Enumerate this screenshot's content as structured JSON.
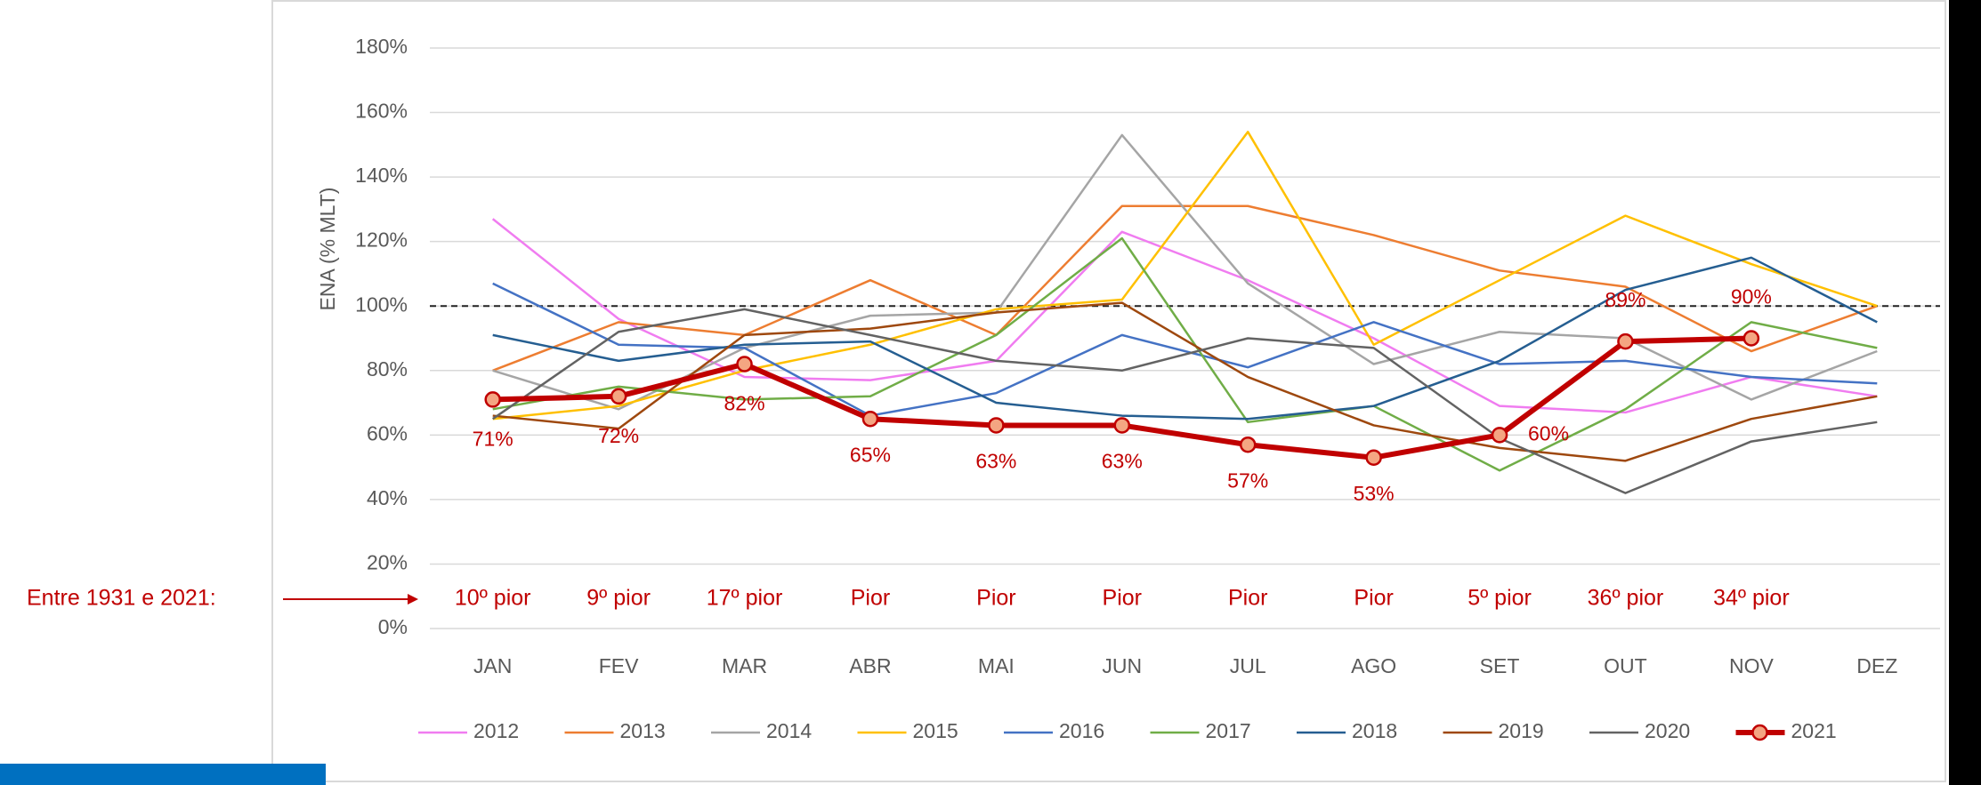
{
  "chart_data": {
    "type": "line",
    "y_axis_label": "ENA (% MLT)",
    "categories": [
      "JAN",
      "FEV",
      "MAR",
      "ABR",
      "MAI",
      "JUN",
      "JUL",
      "AGO",
      "SET",
      "OUT",
      "NOV",
      "DEZ"
    ],
    "ylim": [
      0,
      180
    ],
    "yticks": [
      {
        "value": 0,
        "label": "0%"
      },
      {
        "value": 20,
        "label": "20%"
      },
      {
        "value": 40,
        "label": "40%"
      },
      {
        "value": 60,
        "label": "60%"
      },
      {
        "value": 80,
        "label": "80%"
      },
      {
        "value": 100,
        "label": "100%"
      },
      {
        "value": 120,
        "label": "120%"
      },
      {
        "value": 140,
        "label": "140%"
      },
      {
        "value": 160,
        "label": "160%"
      },
      {
        "value": 180,
        "label": "180%"
      }
    ],
    "grid": true,
    "reference_line": 100,
    "legend": "bottom",
    "series": [
      {
        "name": "2012",
        "color": "#f07cf0",
        "values": [
          127,
          96,
          78,
          77,
          83,
          123,
          108,
          90,
          69,
          67,
          78,
          72
        ]
      },
      {
        "name": "2013",
        "color": "#ed7d31",
        "values": [
          80,
          95,
          91,
          108,
          91,
          131,
          131,
          122,
          111,
          106,
          86,
          100
        ]
      },
      {
        "name": "2014",
        "color": "#a5a5a5",
        "values": [
          80,
          68,
          87,
          97,
          98,
          153,
          107,
          82,
          92,
          90,
          71,
          86
        ]
      },
      {
        "name": "2015",
        "color": "#ffc000",
        "values": [
          65,
          69,
          80,
          88,
          99,
          102,
          154,
          88,
          108,
          128,
          113,
          100
        ]
      },
      {
        "name": "2016",
        "color": "#4472c4",
        "values": [
          107,
          88,
          87,
          66,
          73,
          91,
          81,
          95,
          82,
          83,
          78,
          76
        ]
      },
      {
        "name": "2017",
        "color": "#70ad47",
        "values": [
          68,
          75,
          71,
          72,
          91,
          121,
          64,
          69,
          49,
          68,
          95,
          87
        ]
      },
      {
        "name": "2018",
        "color": "#255e91",
        "values": [
          91,
          83,
          88,
          89,
          70,
          66,
          65,
          69,
          83,
          105,
          115,
          95
        ]
      },
      {
        "name": "2019",
        "color": "#9e480e",
        "values": [
          66,
          62,
          91,
          93,
          98,
          101,
          78,
          63,
          56,
          52,
          65,
          72
        ]
      },
      {
        "name": "2020",
        "color": "#636363",
        "values": [
          65,
          92,
          99,
          91,
          83,
          80,
          90,
          87,
          59,
          42,
          58,
          64
        ]
      },
      {
        "name": "2021",
        "color": "#c00000",
        "marker_color": "#f4a582",
        "values": [
          71,
          72,
          82,
          65,
          63,
          63,
          57,
          53,
          60,
          89,
          90,
          null
        ],
        "value_labels": [
          "71%",
          "72%",
          "82%",
          "65%",
          "63%",
          "63%",
          "57%",
          "53%",
          "60%",
          "89%",
          "90%",
          null
        ]
      }
    ],
    "annotation": {
      "label": "Entre 1931 e 2021:",
      "ranks": [
        "10º pior",
        "9º pior",
        "17º pior",
        "Pior",
        "Pior",
        "Pior",
        "Pior",
        "Pior",
        "5º pior",
        "36º pior",
        "34º pior",
        null
      ]
    }
  }
}
